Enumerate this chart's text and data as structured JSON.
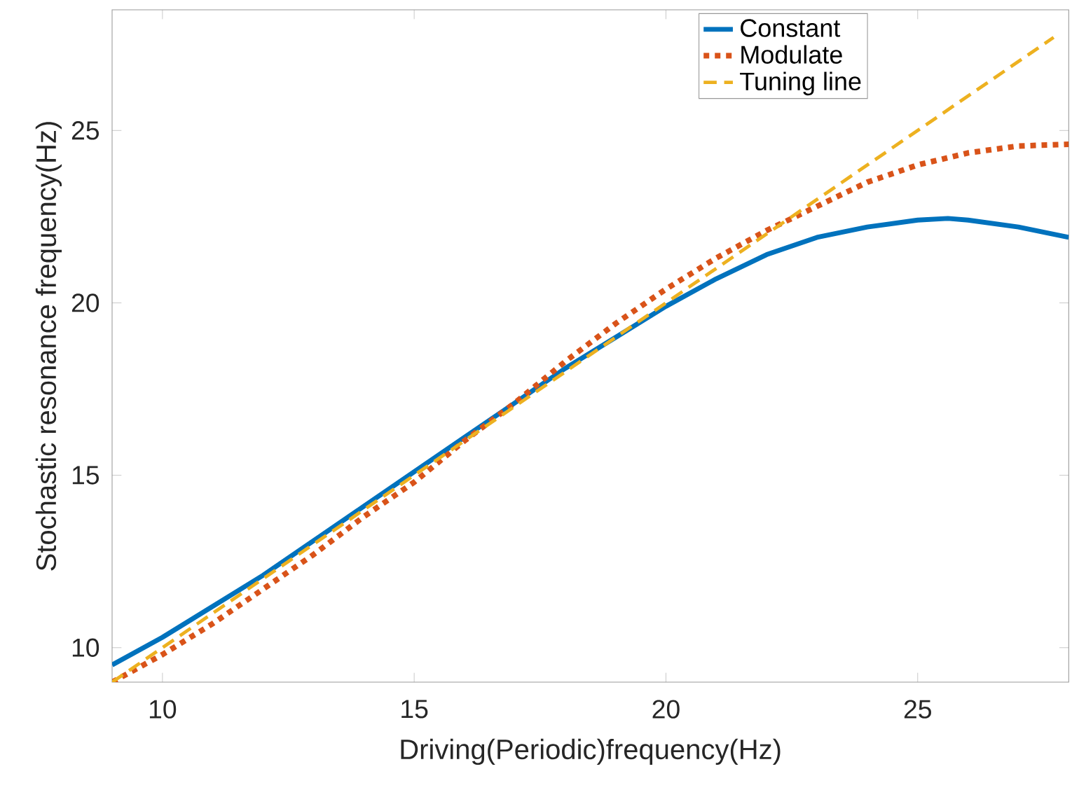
{
  "chart_data": {
    "type": "line",
    "xlabel": "Driving(Periodic)frequency(Hz)",
    "ylabel": "Stochastic resonance frequency(Hz)",
    "xlim": [
      9,
      28
    ],
    "ylim": [
      9,
      28.5
    ],
    "xticks": [
      10,
      15,
      20,
      25
    ],
    "yticks": [
      10,
      15,
      20,
      25
    ],
    "grid": false,
    "legend": "top right",
    "series": [
      {
        "name": "Constant",
        "color": "#0072bd",
        "line_style": "solid",
        "x": [
          9,
          10,
          11,
          12,
          13,
          14,
          15,
          16,
          17,
          18,
          19,
          20,
          21,
          22,
          23,
          24,
          25,
          25.6,
          26,
          27,
          28
        ],
        "values": [
          9.5,
          10.3,
          11.2,
          12.1,
          13.1,
          14.1,
          15.1,
          16.1,
          17.1,
          18.1,
          19.0,
          19.9,
          20.7,
          21.4,
          21.9,
          22.2,
          22.4,
          22.45,
          22.4,
          22.2,
          21.9
        ]
      },
      {
        "name": "Modulate",
        "color": "#d95319",
        "line_style": "dotted",
        "x": [
          9,
          10,
          11,
          12,
          13,
          14,
          15,
          16,
          17,
          18,
          19,
          20,
          21,
          22,
          23,
          24,
          25,
          26,
          27,
          28
        ],
        "values": [
          9.0,
          9.8,
          10.7,
          11.7,
          12.7,
          13.8,
          14.8,
          16.0,
          17.1,
          18.3,
          19.4,
          20.4,
          21.3,
          22.1,
          22.8,
          23.5,
          24.0,
          24.35,
          24.55,
          24.6
        ]
      },
      {
        "name": "Tuning line",
        "color": "#edb120",
        "line_style": "dashed",
        "x": [
          9,
          27.7
        ],
        "values": [
          9,
          27.7
        ]
      }
    ]
  }
}
